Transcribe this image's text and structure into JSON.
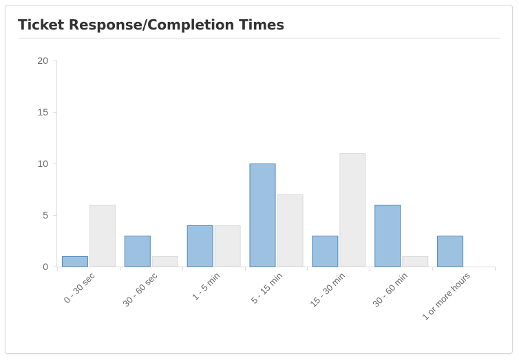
{
  "card": {
    "title": "Ticket Response/Completion Times"
  },
  "chart_data": {
    "type": "bar",
    "categories": [
      "0 - 30 sec",
      "30 - 60 sec",
      "1 - 5 min",
      "5 - 15 min",
      "15 - 30 min",
      "30 - 60 min",
      "1 or more hours"
    ],
    "series": [
      {
        "values": [
          1,
          3,
          4,
          10,
          3,
          6,
          3
        ],
        "color": "#9dc1e0",
        "stroke": "#4a87bd"
      },
      {
        "values": [
          6,
          1,
          4,
          7,
          11,
          1,
          0
        ],
        "color": "#ececec",
        "stroke": "#dadada"
      }
    ],
    "ylim": [
      0,
      20
    ],
    "yticks": [
      0,
      5,
      10,
      15,
      20
    ],
    "grid": false,
    "legend": "none",
    "title": "",
    "xlabel": "",
    "ylabel": ""
  }
}
